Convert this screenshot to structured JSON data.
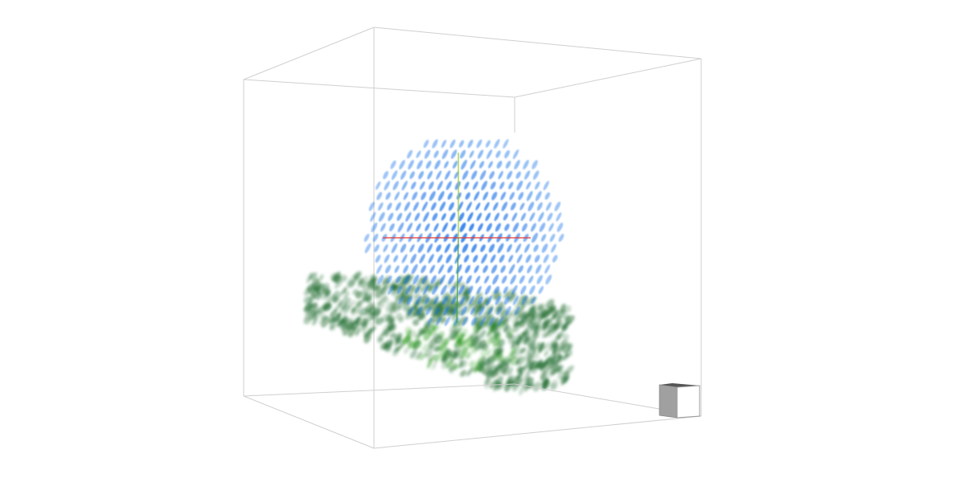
{
  "scene": {
    "background_color": "#ffffff",
    "bounding_box_color": "#cfcfcf",
    "volumes": [
      {
        "name": "blue-sphere-volume",
        "color": "#1a73e8"
      },
      {
        "name": "green-ground-volume",
        "color": "#1e6b2e",
        "highlight_color": "#2f9e22"
      }
    ],
    "axes": {
      "x_color": "#e53935",
      "y_color": "#9acd32",
      "z_color": "#43a047"
    },
    "orientation_widget": {
      "icon": "orientation-cube-icon",
      "face_color": "#ffffff",
      "side_color": "#a0a0a0",
      "top_color": "#555555"
    }
  }
}
